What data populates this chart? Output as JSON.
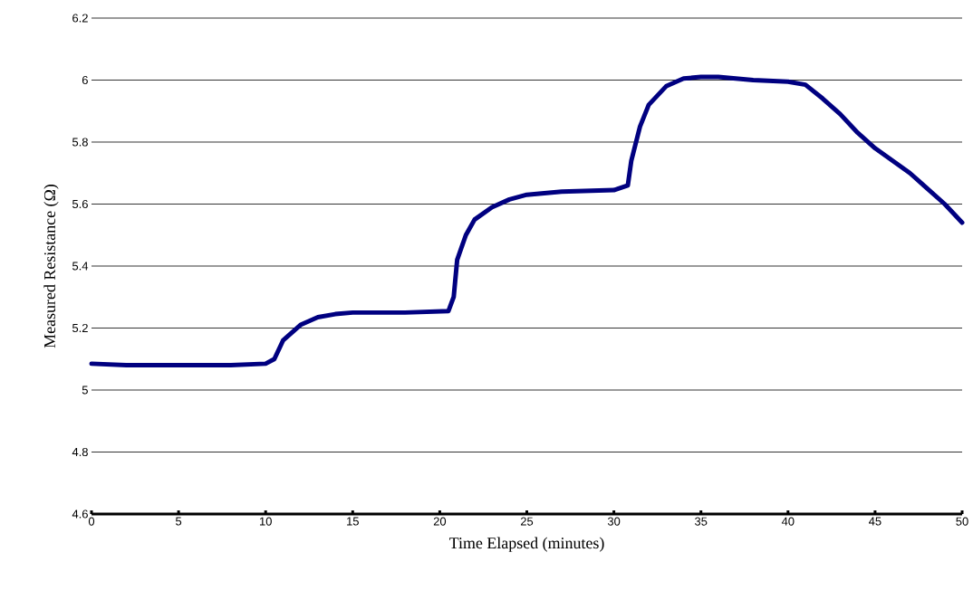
{
  "chart_data": {
    "type": "line",
    "xlabel": "Time Elapsed (minutes)",
    "ylabel": "Measured Resistance (Ω)",
    "xlim": [
      0,
      50
    ],
    "ylim": [
      4.6,
      6.2
    ],
    "xticks": [
      0,
      5,
      10,
      15,
      20,
      25,
      30,
      35,
      40,
      45,
      50
    ],
    "yticks": [
      4.6,
      4.8,
      5,
      5.2,
      5.4,
      5.6,
      5.8,
      6,
      6.2
    ],
    "grid": "y",
    "series": [
      {
        "color": "#000080",
        "x": [
          0,
          2,
          5,
          8,
          10,
          10.5,
          11,
          12,
          13,
          14,
          15,
          18,
          20.5,
          20.8,
          21,
          21.5,
          22,
          23,
          24,
          25,
          27,
          30,
          30.8,
          31,
          31.5,
          32,
          33,
          34,
          35,
          36,
          38,
          40,
          41,
          42,
          43,
          44,
          45,
          46,
          47,
          48,
          49,
          50
        ],
        "values": [
          5.085,
          5.08,
          5.08,
          5.08,
          5.085,
          5.1,
          5.16,
          5.21,
          5.235,
          5.245,
          5.25,
          5.25,
          5.255,
          5.3,
          5.42,
          5.5,
          5.55,
          5.59,
          5.615,
          5.63,
          5.64,
          5.645,
          5.66,
          5.74,
          5.85,
          5.92,
          5.98,
          6.005,
          6.01,
          6.01,
          6.0,
          5.995,
          5.985,
          5.94,
          5.89,
          5.83,
          5.78,
          5.74,
          5.7,
          5.65,
          5.6,
          5.54
        ]
      }
    ]
  }
}
